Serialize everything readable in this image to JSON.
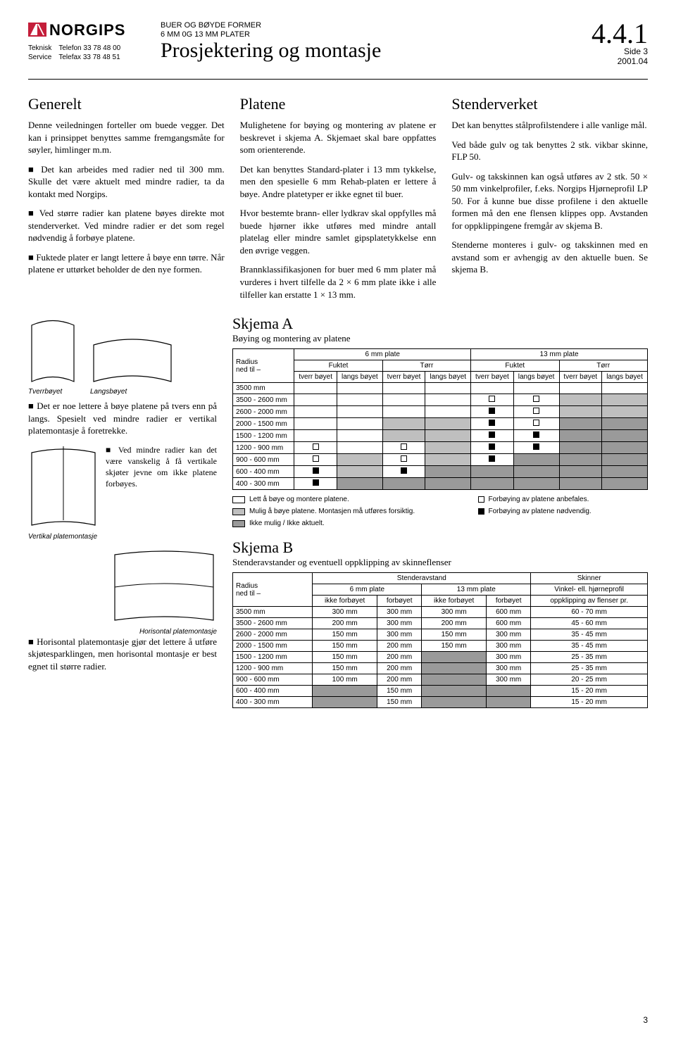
{
  "header": {
    "logo_text": "NORGIPS",
    "contact_label1": "Teknisk",
    "contact_label2": "Service",
    "phone_label": "Telefon 33 78 48 00",
    "fax_label": "Telefax 33 78 48 51",
    "sub1": "BUER OG BØYDE FORMER",
    "sub2": "6 MM 0G 13 MM PLATER",
    "title": "Prosjektering og montasje",
    "docnum": "4.4.1",
    "side": "Side 3",
    "date": "2001.04"
  },
  "generelt": {
    "h": "Generelt",
    "p1": "Denne veiledningen forteller om buede vegger. Det kan i prinsippet benyttes samme fremgangsmåte for søyler, himlinger m.m.",
    "p2": "Det kan arbeides med radier ned til 300 mm. Skulle det være aktuelt med mindre radier, ta da kontakt med Norgips.",
    "p3": "Ved større radier kan platene bøyes direkte mot stenderverket. Ved mindre radier er det som regel nødvendig å forbøye platene.",
    "p4": "Fuktede plater er langt lettere å bøye enn tørre. Når platene er uttørket beholder de den nye formen."
  },
  "platene": {
    "h": "Platene",
    "p1": "Mulighetene for bøying og montering av platene er beskrevet i skjema A. Skjemaet skal bare oppfattes som orienterende.",
    "p2": "Det kan benyttes Standard-plater i 13 mm tykkelse, men den spesielle 6 mm Rehab-platen er lettere å bøye. Andre platetyper er ikke egnet til buer.",
    "p3": "Hvor bestemte brann- eller lydkrav skal oppfylles må buede hjørner ikke utføres med mindre antall platelag eller mindre samlet gipsplatetykkelse enn den øvrige veggen.",
    "p4": "Brannklassifikasjonen for buer med 6 mm plater må vurderes i hvert tilfelle da 2 × 6 mm plate ikke i alle tilfeller kan erstatte 1 × 13 mm."
  },
  "stender": {
    "h": "Stenderverket",
    "p1": "Det kan benyttes stålprofilstendere i alle vanlige mål.",
    "p2": "Ved både gulv og tak benyttes 2 stk. vikbar skinne, FLP 50.",
    "p3": "Gulv- og takskinnen kan også utføres av 2 stk. 50 × 50 mm vinkelprofiler, f.eks. Norgips Hjørneprofil LP 50. For å kunne bue disse profilene i den aktuelle formen må den ene flensen klippes opp. Avstanden for oppklippingene fremgår av skjema B.",
    "p4": "Stenderne monteres i gulv- og takskinnen med en avstand som er avhengig av den aktuelle buen. Se skjema B."
  },
  "figs": {
    "tverr": "Tverrbøyet",
    "langs": "Langsbøyet",
    "p1": "Det er noe lettere å bøye platene på tvers enn på langs. Spesielt ved mindre radier er vertikal platemontasje å foretrekke.",
    "p2": "Ved mindre radier kan det være vanskelig å få vertikale skjøter jevne om ikke platene forbøyes.",
    "vert": "Vertikal platemontasje",
    "horis": "Horisontal platemontasje",
    "p3": "Horisontal platemontasje gjør det lettere å utføre skjøtesparklingen, men horisontal montasje er best egnet til større radier."
  },
  "schemaA": {
    "title": "Skjema A",
    "sub": "Bøying og montering av platene",
    "col_radius": "Radius",
    "col_ned": "ned til –",
    "col_6mm": "6 mm plate",
    "col_13mm": "13 mm plate",
    "col_fuktet": "Fuktet",
    "col_torr": "Tørr",
    "col_tverr": "tverr bøyet",
    "col_langs": "langs bøyet",
    "rows": [
      "3500 mm",
      "3500 - 2600 mm",
      "2600 - 2000 mm",
      "2000 - 1500 mm",
      "1500 - 1200 mm",
      "1200 -  900 mm",
      "900 -  600 mm",
      "600 -  400 mm",
      "400 -  300 mm"
    ]
  },
  "legend": {
    "l1": "Lett å bøye og montere platene.",
    "l2": "Mulig å bøye platene. Montasjen må utføres forsiktig.",
    "l3": "Ikke mulig / Ikke aktuelt.",
    "l4": "Forbøying av platene anbefales.",
    "l5": "Forbøying av platene nødvendig."
  },
  "schemaB": {
    "title": "Skjema B",
    "sub": "Stenderavstander og eventuell oppklipping av skinneflenser",
    "col_radius": "Radius",
    "col_ned": "ned til –",
    "col_stender": "Stenderavstand",
    "col_skinner": "Skinner",
    "col_6mm": "6 mm plate",
    "col_13mm": "13 mm plate",
    "col_vinkel": "Vinkel- ell. hjørneprofil",
    "col_ikke": "ikke forbøyet",
    "col_forb": "forbøyet",
    "col_opp": "oppklipping av flenser pr.",
    "rows": [
      [
        "3500 mm",
        "300 mm",
        "300 mm",
        "300 mm",
        "600 mm",
        "60 - 70 mm"
      ],
      [
        "3500 - 2600 mm",
        "200 mm",
        "300 mm",
        "200 mm",
        "600 mm",
        "45 - 60 mm"
      ],
      [
        "2600 - 2000 mm",
        "150 mm",
        "300 mm",
        "150 mm",
        "300 mm",
        "35 - 45 mm"
      ],
      [
        "2000 - 1500 mm",
        "150 mm",
        "200 mm",
        "150 mm",
        "300 mm",
        "35 - 45 mm"
      ],
      [
        "1500 - 1200 mm",
        "150 mm",
        "200 mm",
        "",
        "300 mm",
        "25 - 35 mm"
      ],
      [
        "1200 -  900 mm",
        "150 mm",
        "200 mm",
        "",
        "300 mm",
        "25 - 35 mm"
      ],
      [
        "900 -  600 mm",
        "100 mm",
        "200 mm",
        "",
        "300 mm",
        "20 - 25 mm"
      ],
      [
        "600 -  400 mm",
        "",
        "150 mm",
        "",
        "",
        "15 - 20 mm"
      ],
      [
        "400 -  300 mm",
        "",
        "150 mm",
        "",
        "",
        "15 - 20 mm"
      ]
    ]
  },
  "page_number": "3"
}
